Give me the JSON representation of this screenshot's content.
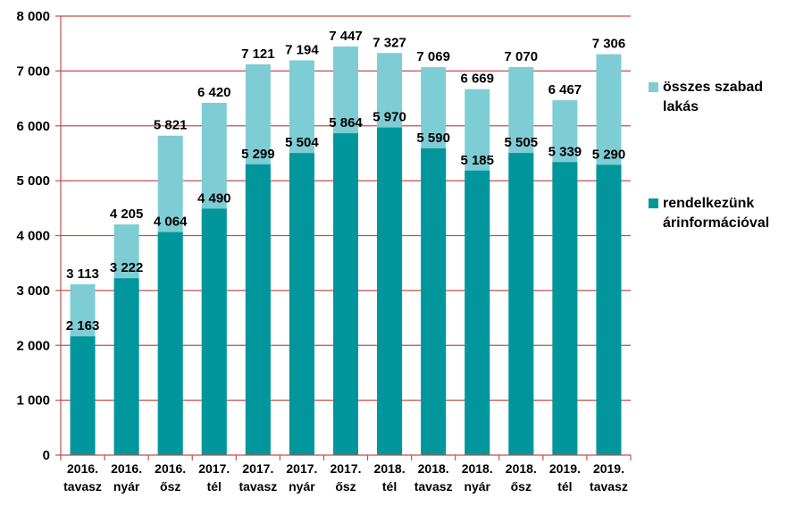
{
  "chart_data": {
    "type": "bar",
    "stacked": false,
    "overlapping": true,
    "categories": [
      [
        "2016.",
        "tavasz"
      ],
      [
        "2016.",
        "nyár"
      ],
      [
        "2016.",
        "ősz"
      ],
      [
        "2017.",
        "tél"
      ],
      [
        "2017.",
        "tavasz"
      ],
      [
        "2017.",
        "nyár"
      ],
      [
        "2017.",
        "ősz"
      ],
      [
        "2018.",
        "tél"
      ],
      [
        "2018.",
        "tavasz"
      ],
      [
        "2018.",
        "nyár"
      ],
      [
        "2018.",
        "ősz"
      ],
      [
        "2019.",
        "tél"
      ],
      [
        "2019.",
        "tavasz"
      ]
    ],
    "series": [
      {
        "name": "összes szabad lakás",
        "legend_lines": [
          "összes szabad",
          "lakás"
        ],
        "color": "#7ecdd4",
        "values": [
          3113,
          4205,
          5821,
          6420,
          7121,
          7194,
          7447,
          7327,
          7069,
          6669,
          7070,
          6467,
          7306
        ],
        "labels": [
          "3 113",
          "4 205",
          "5 821",
          "6 420",
          "7 121",
          "7 194",
          "7 447",
          "7 327",
          "7 069",
          "6 669",
          "7 070",
          "6 467",
          "7 306"
        ]
      },
      {
        "name": "rendelkezünk árinformációval",
        "legend_lines": [
          "rendelkezünk",
          "árinformációval"
        ],
        "color": "#00969b",
        "values": [
          2163,
          3222,
          4064,
          4490,
          5299,
          5504,
          5864,
          5970,
          5590,
          5185,
          5505,
          5339,
          5290
        ],
        "labels": [
          "2 163",
          "3 222",
          "4 064",
          "4 490",
          "5 299",
          "5 504",
          "5 864",
          "5 970",
          "5 590",
          "5 185",
          "5 505",
          "5 339",
          "5 290"
        ]
      }
    ],
    "ylim": [
      0,
      8000
    ],
    "yticks": [
      0,
      1000,
      2000,
      3000,
      4000,
      5000,
      6000,
      7000,
      8000
    ],
    "ytick_labels": [
      "0",
      "1 000",
      "2 000",
      "3 000",
      "4 000",
      "5 000",
      "6 000",
      "7 000",
      "8 000"
    ],
    "gridline_color": "#c0504d",
    "grid": true,
    "legend_position": "right",
    "title": "",
    "xlabel": "",
    "ylabel": ""
  }
}
